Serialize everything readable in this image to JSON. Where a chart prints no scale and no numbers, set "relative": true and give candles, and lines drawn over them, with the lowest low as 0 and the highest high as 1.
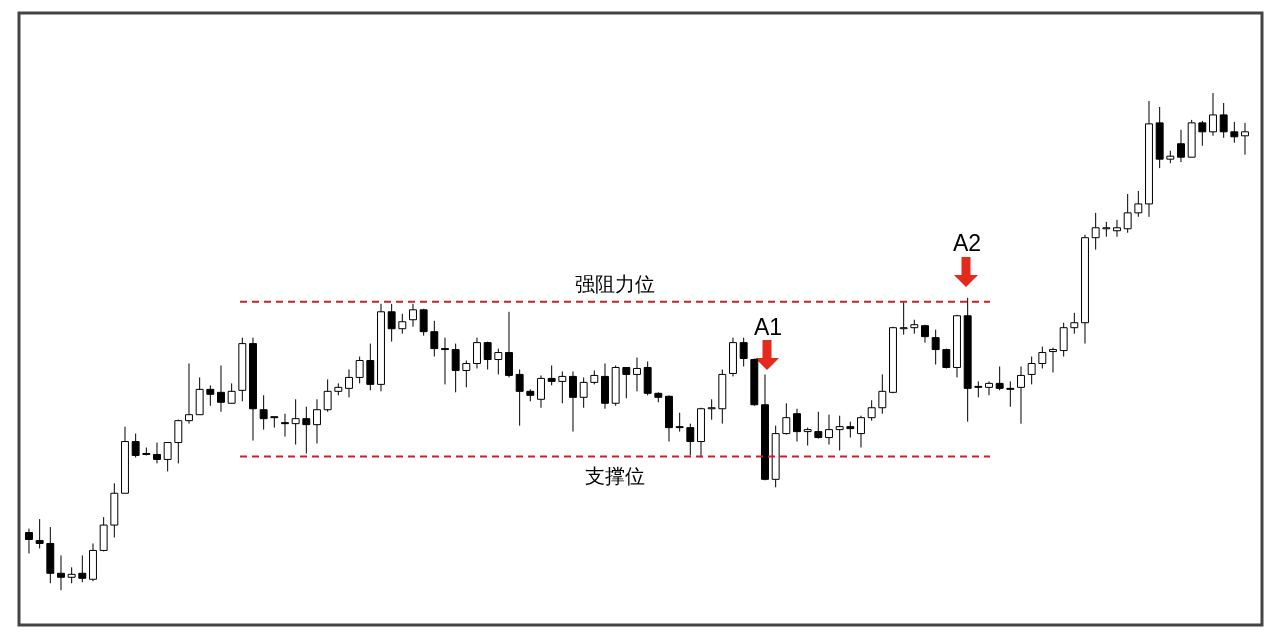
{
  "chart_data": {
    "type": "candlestick",
    "relative": true,
    "tick_labels": false,
    "color": "#000000",
    "categories": [
      null,
      null,
      null,
      null,
      null,
      null,
      null,
      null,
      null,
      null,
      null,
      null,
      null,
      null,
      null,
      null,
      null,
      null,
      null,
      null,
      null,
      null,
      null,
      null,
      null,
      null,
      null,
      null,
      null,
      null,
      null,
      null,
      null,
      null,
      null,
      null,
      null,
      null,
      null,
      null,
      null,
      null,
      null,
      null,
      null,
      null,
      null,
      null,
      null,
      null,
      null,
      null,
      null,
      null,
      null,
      null,
      null,
      null,
      null,
      null,
      null,
      null,
      null,
      null,
      null,
      null,
      null,
      null,
      null,
      null,
      null,
      null,
      null,
      null,
      null,
      null,
      null,
      null,
      null,
      null,
      null,
      null,
      null,
      null,
      null,
      null,
      null,
      null,
      null,
      null,
      null,
      null,
      null,
      null,
      null,
      null,
      null,
      null,
      null,
      null,
      null,
      null,
      null,
      null,
      null,
      null,
      null,
      null,
      null,
      null,
      null,
      null,
      null,
      null,
      null
    ],
    "ohlc": [
      [
        0.116,
        0.124,
        0.074,
        0.102
      ],
      [
        0.1,
        0.143,
        0.084,
        0.094
      ],
      [
        0.094,
        0.127,
        0.014,
        0.034
      ],
      [
        0.034,
        0.07,
        0,
        0.026
      ],
      [
        0.026,
        0.046,
        0.014,
        0.032
      ],
      [
        0.034,
        0.07,
        0.016,
        0.024
      ],
      [
        0.022,
        0.094,
        0.018,
        0.08
      ],
      [
        0.08,
        0.147,
        0.078,
        0.131
      ],
      [
        0.131,
        0.215,
        0.106,
        0.195
      ],
      [
        0.195,
        0.329,
        0.195,
        0.299
      ],
      [
        0.299,
        0.315,
        0.267,
        0.271
      ],
      [
        0.275,
        0.287,
        0.271,
        0.273
      ],
      [
        0.273,
        0.297,
        0.255,
        0.263
      ],
      [
        0.263,
        0.297,
        0.239,
        0.297
      ],
      [
        0.297,
        0.343,
        0.255,
        0.341
      ],
      [
        0.341,
        0.456,
        0.335,
        0.353
      ],
      [
        0.353,
        0.428,
        0.353,
        0.404
      ],
      [
        0.404,
        0.412,
        0.371,
        0.394
      ],
      [
        0.398,
        0.452,
        0.359,
        0.378
      ],
      [
        0.376,
        0.416,
        0.376,
        0.4
      ],
      [
        0.402,
        0.508,
        0.38,
        0.496
      ],
      [
        0.496,
        0.508,
        0.301,
        0.365
      ],
      [
        0.363,
        0.392,
        0.323,
        0.345
      ],
      [
        0.349,
        0.349,
        0.327,
        0.347
      ],
      [
        0.337,
        0.355,
        0.309,
        0.335
      ],
      [
        0.335,
        0.384,
        0.293,
        0.345
      ],
      [
        0.345,
        0.369,
        0.275,
        0.333
      ],
      [
        0.333,
        0.384,
        0.295,
        0.363
      ],
      [
        0.363,
        0.424,
        0.359,
        0.4
      ],
      [
        0.4,
        0.416,
        0.392,
        0.408
      ],
      [
        0.406,
        0.444,
        0.388,
        0.428
      ],
      [
        0.428,
        0.47,
        0.416,
        0.462
      ],
      [
        0.462,
        0.496,
        0.402,
        0.414
      ],
      [
        0.414,
        0.576,
        0.4,
        0.56
      ],
      [
        0.56,
        0.576,
        0.5,
        0.526
      ],
      [
        0.526,
        0.556,
        0.516,
        0.54
      ],
      [
        0.544,
        0.576,
        0.53,
        0.564
      ],
      [
        0.564,
        0.566,
        0.512,
        0.52
      ],
      [
        0.52,
        0.542,
        0.47,
        0.486
      ],
      [
        0.486,
        0.508,
        0.414,
        0.484
      ],
      [
        0.484,
        0.496,
        0.398,
        0.442
      ],
      [
        0.442,
        0.462,
        0.408,
        0.456
      ],
      [
        0.456,
        0.508,
        0.446,
        0.498
      ],
      [
        0.498,
        0.5,
        0.444,
        0.464
      ],
      [
        0.464,
        0.486,
        0.434,
        0.478
      ],
      [
        0.478,
        0.56,
        0.428,
        0.432
      ],
      [
        0.434,
        0.444,
        0.331,
        0.4
      ],
      [
        0.4,
        0.404,
        0.38,
        0.392
      ],
      [
        0.384,
        0.432,
        0.367,
        0.426
      ],
      [
        0.426,
        0.452,
        0.412,
        0.42
      ],
      [
        0.42,
        0.44,
        0.376,
        0.43
      ],
      [
        0.43,
        0.44,
        0.319,
        0.388
      ],
      [
        0.388,
        0.428,
        0.367,
        0.418
      ],
      [
        0.418,
        0.442,
        0.414,
        0.432
      ],
      [
        0.43,
        0.456,
        0.365,
        0.376
      ],
      [
        0.376,
        0.452,
        0.371,
        0.448
      ],
      [
        0.448,
        0.448,
        0.386,
        0.434
      ],
      [
        0.434,
        0.468,
        0.4,
        0.446
      ],
      [
        0.448,
        0.46,
        0.392,
        0.396
      ],
      [
        0.396,
        0.398,
        0.378,
        0.388
      ],
      [
        0.39,
        0.392,
        0.299,
        0.327
      ],
      [
        0.329,
        0.357,
        0.319,
        0.327
      ],
      [
        0.327,
        0.335,
        0.271,
        0.299
      ],
      [
        0.299,
        0.367,
        0.267,
        0.365
      ],
      [
        0.365,
        0.384,
        0.343,
        0.367
      ],
      [
        0.365,
        0.444,
        0.335,
        0.434
      ],
      [
        0.436,
        0.508,
        0.43,
        0.498
      ],
      [
        0.498,
        0.508,
        0.45,
        0.466
      ],
      [
        0.464,
        0.466,
        0.371,
        0.373
      ],
      [
        0.373,
        0.434,
        0.221,
        0.223
      ],
      [
        0.223,
        0.331,
        0.207,
        0.315
      ],
      [
        0.315,
        0.376,
        0.313,
        0.347
      ],
      [
        0.355,
        0.365,
        0.299,
        0.319
      ],
      [
        0.319,
        0.327,
        0.291,
        0.323
      ],
      [
        0.319,
        0.359,
        0.305,
        0.307
      ],
      [
        0.307,
        0.353,
        0.293,
        0.323
      ],
      [
        0.323,
        0.351,
        0.281,
        0.329
      ],
      [
        0.329,
        0.339,
        0.307,
        0.325
      ],
      [
        0.315,
        0.351,
        0.287,
        0.347
      ],
      [
        0.347,
        0.382,
        0.341,
        0.367
      ],
      [
        0.367,
        0.434,
        0.355,
        0.4
      ],
      [
        0.398,
        0.53,
        0.396,
        0.528
      ],
      [
        0.526,
        0.58,
        0.514,
        0.528
      ],
      [
        0.528,
        0.544,
        0.516,
        0.534
      ],
      [
        0.532,
        0.534,
        0.498,
        0.51
      ],
      [
        0.508,
        0.524,
        0.454,
        0.484
      ],
      [
        0.484,
        0.486,
        0.446,
        0.448
      ],
      [
        0.448,
        0.554,
        0.428,
        0.552
      ],
      [
        0.552,
        0.588,
        0.339,
        0.406
      ],
      [
        0.41,
        0.42,
        0.388,
        0.408
      ],
      [
        0.408,
        0.42,
        0.392,
        0.416
      ],
      [
        0.416,
        0.45,
        0.402,
        0.406
      ],
      [
        0.406,
        0.42,
        0.369,
        0.404
      ],
      [
        0.408,
        0.45,
        0.335,
        0.432
      ],
      [
        0.434,
        0.47,
        0.414,
        0.456
      ],
      [
        0.456,
        0.49,
        0.446,
        0.478
      ],
      [
        0.48,
        0.488,
        0.438,
        0.484
      ],
      [
        0.482,
        0.538,
        0.47,
        0.528
      ],
      [
        0.528,
        0.558,
        0.516,
        0.538
      ],
      [
        0.538,
        0.715,
        0.496,
        0.709
      ],
      [
        0.709,
        0.759,
        0.685,
        0.729
      ],
      [
        0.727,
        0.741,
        0.711,
        0.729
      ],
      [
        0.723,
        0.745,
        0.711,
        0.729
      ],
      [
        0.727,
        0.797,
        0.719,
        0.759
      ],
      [
        0.759,
        0.803,
        0.751,
        0.777
      ],
      [
        0.777,
        0.984,
        0.751,
        0.938
      ],
      [
        0.94,
        0.972,
        0.849,
        0.867
      ],
      [
        0.867,
        0.884,
        0.859,
        0.873
      ],
      [
        0.898,
        0.926,
        0.861,
        0.871
      ],
      [
        0.871,
        0.946,
        0.871,
        0.94
      ],
      [
        0.94,
        0.944,
        0.894,
        0.922
      ],
      [
        0.922,
        1,
        0.914,
        0.956
      ],
      [
        0.956,
        0.98,
        0.91,
        0.922
      ],
      [
        0.922,
        0.942,
        0.9,
        0.912
      ],
      [
        0.914,
        0.94,
        0.876,
        0.922
      ]
    ],
    "ref_lines": [
      {
        "axis": "y",
        "value": 0.58,
        "label": "强阻力位",
        "color": "#cc2222",
        "line_style": "dashed"
      },
      {
        "axis": "y",
        "value": 0.269,
        "label": "支撑位",
        "color": "#cc2222",
        "line_style": "dashed"
      }
    ],
    "annotations": [
      "A1",
      "A2"
    ]
  }
}
